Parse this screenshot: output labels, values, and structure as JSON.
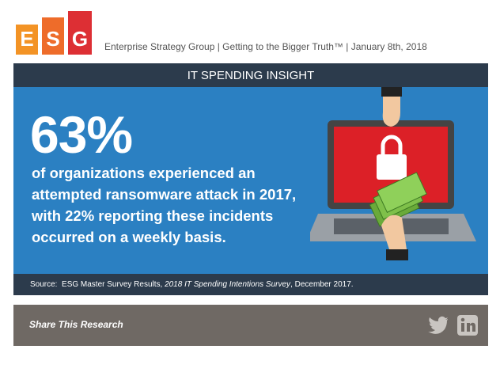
{
  "header": {
    "logo_letters": [
      "E",
      "S",
      "G"
    ],
    "tagline": "Enterprise Strategy Group | Getting to the Bigger Truth™ | January 8th, 2018"
  },
  "banner": {
    "title": "IT SPENDING INSIGHT"
  },
  "stat": {
    "value": "63%",
    "description_lines": [
      "of organizations experienced an",
      "attempted ransomware attack in 2017,",
      "with 22% reporting these incidents",
      "occurred on a weekly basis."
    ]
  },
  "source": {
    "prefix": "Source:  ESG Master Survey Results, ",
    "title": "2018 IT Spending Intentions Survey",
    "suffix": ", December 2017."
  },
  "footer": {
    "share": "Share This Research"
  }
}
